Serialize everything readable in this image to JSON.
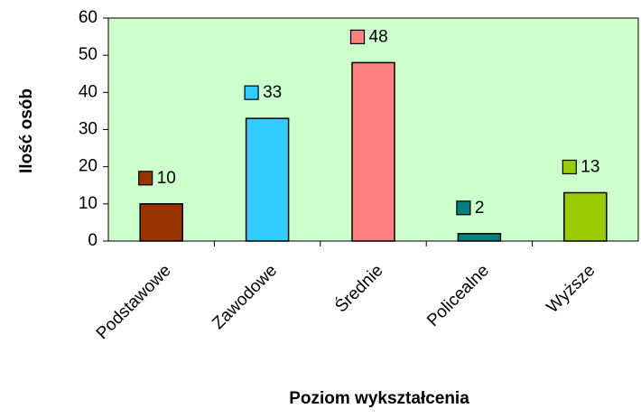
{
  "chart_data": {
    "type": "bar",
    "categories": [
      "Podstawowe",
      "Zawodowe",
      "Średnie",
      "Policealne",
      "Wyższe"
    ],
    "values": [
      10,
      33,
      48,
      2,
      13
    ],
    "colors": [
      "#993300",
      "#33ccff",
      "#ff8080",
      "#008080",
      "#99cc00"
    ],
    "x_label": "Poziom wykształcenia",
    "y_label": "Ilość osób",
    "ylim": [
      0,
      60
    ],
    "yticks": [
      0,
      10,
      20,
      30,
      40,
      50,
      60
    ],
    "background": "#ccffcc"
  }
}
